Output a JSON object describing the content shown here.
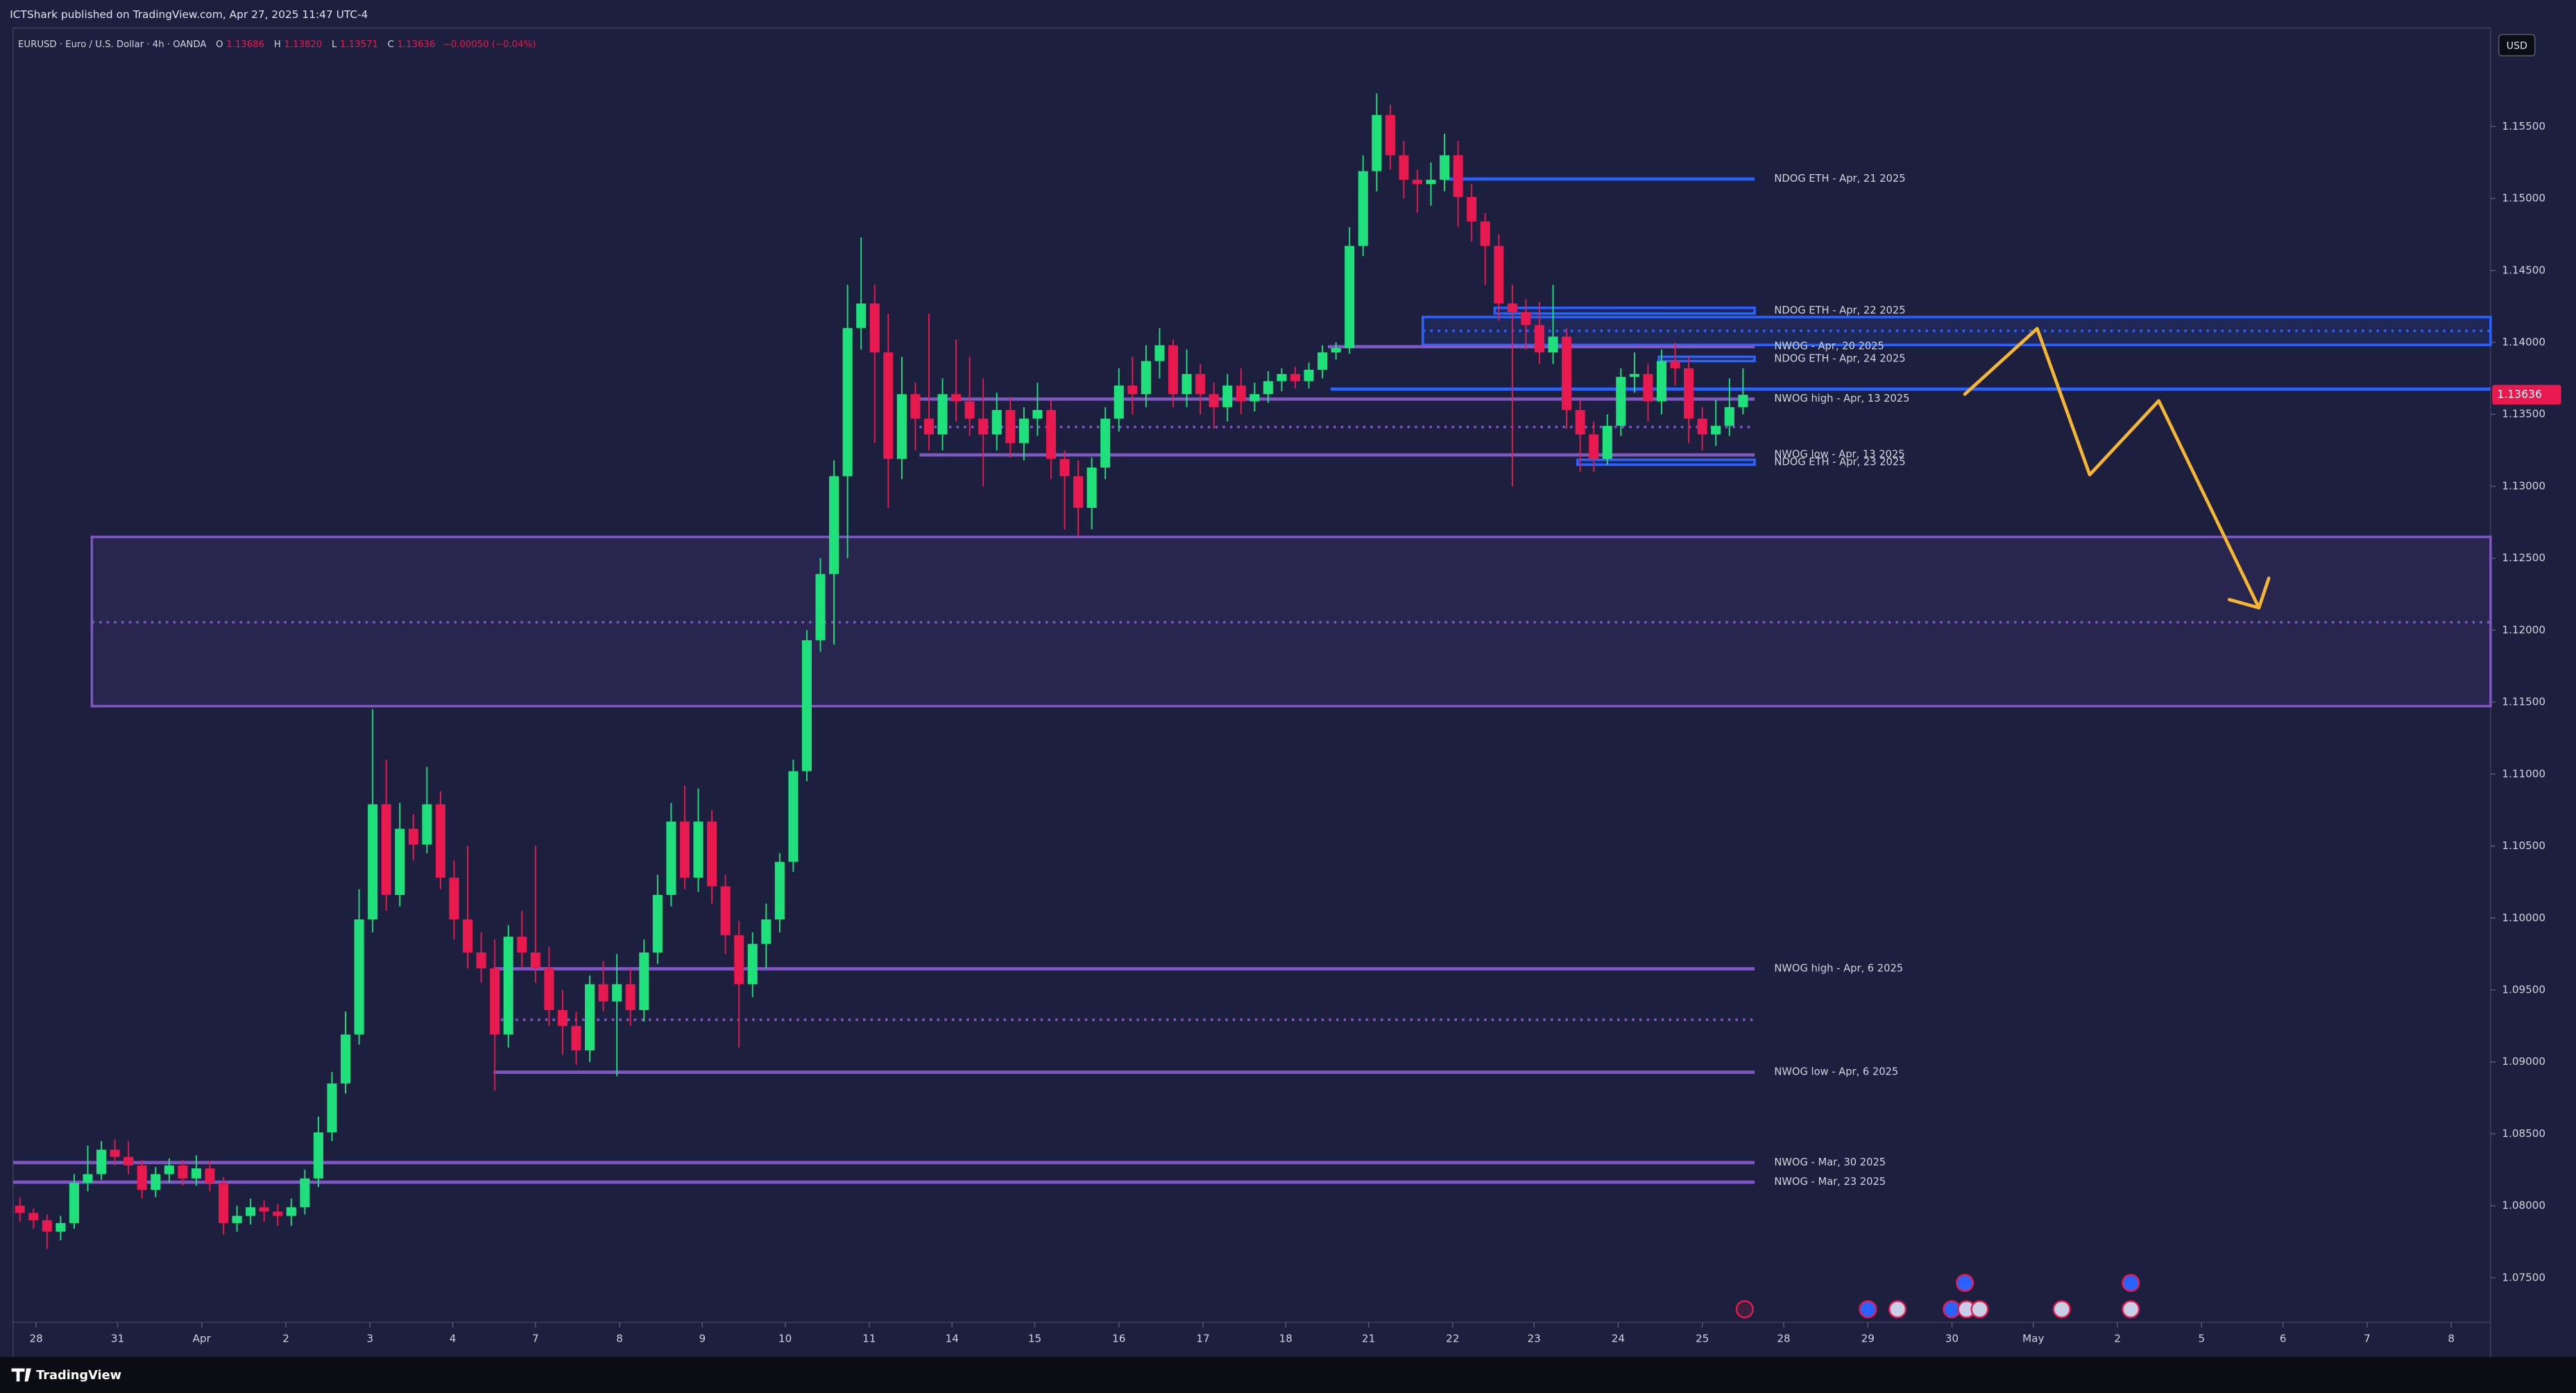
{
  "header": {
    "publisher": "ICTShark published on TradingView.com, Apr 27, 2025 11:47 UTC-4",
    "symbol": "EURUSD · Euro / U.S. Dollar · 4h · OANDA",
    "ohlc": [
      {
        "key": "O",
        "value": "1.13686"
      },
      {
        "key": "H",
        "value": "1.13820"
      },
      {
        "key": "L",
        "value": "1.13571"
      },
      {
        "key": "C",
        "value": "1.13636"
      }
    ],
    "change": "−0.00050 (−0.04%)"
  },
  "chart_data": {
    "type": "candlestick",
    "currency": "USD",
    "up_color": "#1fe07a",
    "down_color": "#e8194f",
    "grid": false,
    "open": [
      1.08,
      1.0795,
      1.079,
      1.0782,
      1.0788,
      1.0816,
      1.0822,
      1.0839,
      1.0834,
      1.0828,
      1.0811,
      1.0822,
      1.0828,
      1.0819,
      1.0826,
      1.0816,
      1.0788,
      1.0793,
      1.0799,
      1.0796,
      1.0793,
      1.0799,
      1.0819,
      1.0851,
      1.0885,
      1.0919,
      1.0999,
      1.1079,
      1.1016,
      1.1062,
      1.1051,
      1.1079,
      1.1028,
      1.0999,
      1.0976,
      1.0965,
      1.0919,
      1.0987,
      1.0976,
      1.0965,
      1.0936,
      1.0925,
      1.0908,
      1.0954,
      1.0942,
      1.0954,
      1.0936,
      1.0976,
      1.1016,
      1.1067,
      1.1028,
      1.1067,
      1.1022,
      1.0988,
      1.0954,
      1.0982,
      1.0999,
      1.1039,
      1.1102,
      1.1193,
      1.1239,
      1.1307,
      1.141,
      1.1427,
      1.1393,
      1.1319,
      1.1364,
      1.1347,
      1.1336,
      1.1364,
      1.1359,
      1.1347,
      1.1336,
      1.1353,
      1.133,
      1.1347,
      1.1353,
      1.1319,
      1.1307,
      1.1285,
      1.1313,
      1.1347,
      1.137,
      1.1364,
      1.1387,
      1.1398,
      1.1364,
      1.1378,
      1.1364,
      1.1355,
      1.137,
      1.1359,
      1.1364,
      1.1373,
      1.1378,
      1.1373,
      1.1381,
      1.1393,
      1.1396,
      1.1467,
      1.1519,
      1.1558,
      1.153,
      1.1513,
      1.151,
      1.1513,
      1.153,
      1.1501,
      1.1484,
      1.1467,
      1.1427,
      1.1421,
      1.1412,
      1.1393,
      1.1404,
      1.1353,
      1.1336,
      1.1319,
      1.1342,
      1.1376,
      1.1378,
      1.1359,
      1.1387,
      1.1382,
      1.1347,
      1.1336,
      1.1342,
      1.1355
    ],
    "high": [
      1.0806,
      1.0798,
      1.0794,
      1.0793,
      1.0822,
      1.0842,
      1.0845,
      1.0846,
      1.0845,
      1.0832,
      1.0827,
      1.0833,
      1.0832,
      1.0835,
      1.0831,
      1.082,
      1.08,
      1.0805,
      1.0804,
      1.0801,
      1.0805,
      1.0825,
      1.0862,
      1.0893,
      1.0935,
      1.102,
      1.1145,
      1.111,
      1.108,
      1.1072,
      1.1105,
      1.1088,
      1.104,
      1.105,
      1.099,
      1.0985,
      1.0995,
      1.1005,
      1.105,
      1.098,
      1.095,
      1.0935,
      1.096,
      1.097,
      1.0975,
      1.0965,
      1.0985,
      1.103,
      1.108,
      1.1092,
      1.109,
      1.1075,
      1.103,
      1.0998,
      1.099,
      1.101,
      1.1045,
      1.111,
      1.12,
      1.125,
      1.1318,
      1.144,
      1.1473,
      1.144,
      1.142,
      1.139,
      1.1372,
      1.142,
      1.1375,
      1.1402,
      1.139,
      1.1375,
      1.1365,
      1.1362,
      1.1355,
      1.1372,
      1.136,
      1.1325,
      1.1318,
      1.132,
      1.1355,
      1.1382,
      1.139,
      1.1398,
      1.141,
      1.1402,
      1.1395,
      1.1385,
      1.1372,
      1.1378,
      1.1382,
      1.1372,
      1.138,
      1.1382,
      1.1383,
      1.1386,
      1.1398,
      1.14,
      1.148,
      1.153,
      1.1573,
      1.1565,
      1.154,
      1.152,
      1.1525,
      1.1545,
      1.154,
      1.151,
      1.149,
      1.1475,
      1.144,
      1.143,
      1.1428,
      1.144,
      1.141,
      1.136,
      1.1345,
      1.135,
      1.1382,
      1.1393,
      1.1385,
      1.1395,
      1.14,
      1.139,
      1.1355,
      1.136,
      1.1375,
      1.1382
    ],
    "low": [
      1.0789,
      1.0784,
      1.077,
      1.0776,
      1.0784,
      1.081,
      1.0818,
      1.0828,
      1.0822,
      1.0805,
      1.0806,
      1.0816,
      1.0814,
      1.0814,
      1.081,
      1.078,
      1.0782,
      1.0787,
      1.0789,
      1.0786,
      1.0786,
      1.0794,
      1.0813,
      1.0845,
      1.0878,
      1.0912,
      1.099,
      1.1005,
      1.1008,
      1.104,
      1.1045,
      1.102,
      1.0985,
      1.0965,
      1.0955,
      1.088,
      1.091,
      1.0965,
      1.0955,
      1.0925,
      1.0905,
      1.0898,
      1.09,
      1.0935,
      1.089,
      1.0925,
      1.0928,
      1.0968,
      1.1008,
      1.102,
      1.1018,
      1.101,
      1.0975,
      1.091,
      1.0945,
      1.0965,
      1.099,
      1.1032,
      1.1095,
      1.1185,
      1.119,
      1.125,
      1.1395,
      1.133,
      1.1285,
      1.1305,
      1.1325,
      1.1325,
      1.1325,
      1.1345,
      1.1335,
      1.13,
      1.1325,
      1.132,
      1.1318,
      1.1335,
      1.1305,
      1.127,
      1.1265,
      1.127,
      1.1305,
      1.1338,
      1.135,
      1.1355,
      1.1375,
      1.1355,
      1.1355,
      1.135,
      1.134,
      1.1345,
      1.135,
      1.1352,
      1.1358,
      1.1366,
      1.1368,
      1.1368,
      1.1375,
      1.1388,
      1.1392,
      1.146,
      1.1505,
      1.152,
      1.15,
      1.149,
      1.1495,
      1.1505,
      1.148,
      1.147,
      1.144,
      1.1415,
      1.13,
      1.1395,
      1.1385,
      1.1385,
      1.134,
      1.131,
      1.131,
      1.1315,
      1.1335,
      1.1365,
      1.1345,
      1.135,
      1.137,
      1.133,
      1.1325,
      1.1328,
      1.1335,
      1.135
    ],
    "close": [
      1.0795,
      1.079,
      1.0782,
      1.0788,
      1.0816,
      1.0822,
      1.0839,
      1.0834,
      1.0828,
      1.0811,
      1.0822,
      1.0828,
      1.0819,
      1.0826,
      1.0816,
      1.0788,
      1.0793,
      1.0799,
      1.0796,
      1.0793,
      1.0799,
      1.0819,
      1.0851,
      1.0885,
      1.0919,
      1.0999,
      1.1079,
      1.1016,
      1.1062,
      1.1051,
      1.1079,
      1.1028,
      1.0999,
      1.0976,
      1.0965,
      1.0919,
      1.0987,
      1.0976,
      1.0965,
      1.0936,
      1.0925,
      1.0908,
      1.0954,
      1.0942,
      1.0954,
      1.0936,
      1.0976,
      1.1016,
      1.1067,
      1.1028,
      1.1067,
      1.1022,
      1.0988,
      1.0954,
      1.0982,
      1.0999,
      1.1039,
      1.1102,
      1.1193,
      1.1239,
      1.1307,
      1.141,
      1.1427,
      1.1393,
      1.1319,
      1.1364,
      1.1347,
      1.1336,
      1.1364,
      1.1359,
      1.1347,
      1.1336,
      1.1353,
      1.133,
      1.1347,
      1.1353,
      1.1319,
      1.1307,
      1.1285,
      1.1313,
      1.1347,
      1.137,
      1.1364,
      1.1387,
      1.1398,
      1.1364,
      1.1378,
      1.1364,
      1.1355,
      1.137,
      1.1359,
      1.1364,
      1.1373,
      1.1378,
      1.1373,
      1.1381,
      1.1393,
      1.1396,
      1.1467,
      1.1519,
      1.1558,
      1.153,
      1.1513,
      1.151,
      1.1513,
      1.153,
      1.1501,
      1.1484,
      1.1467,
      1.1427,
      1.1421,
      1.1412,
      1.1393,
      1.1404,
      1.1353,
      1.1336,
      1.1319,
      1.1342,
      1.1376,
      1.1378,
      1.1359,
      1.1387,
      1.1382,
      1.1347,
      1.1336,
      1.1342,
      1.1355,
      1.13636
    ],
    "ylim": [
      1.0719,
      1.16185
    ],
    "yticks": [
      {
        "value": 1.075,
        "label": "1.07500"
      },
      {
        "value": 1.08,
        "label": "1.08000"
      },
      {
        "value": 1.085,
        "label": "1.08500"
      },
      {
        "value": 1.09,
        "label": "1.09000"
      },
      {
        "value": 1.095,
        "label": "1.09500"
      },
      {
        "value": 1.1,
        "label": "1.10000"
      },
      {
        "value": 1.105,
        "label": "1.10500"
      },
      {
        "value": 1.11,
        "label": "1.11000"
      },
      {
        "value": 1.115,
        "label": "1.11500"
      },
      {
        "value": 1.12,
        "label": "1.12000"
      },
      {
        "value": 1.125,
        "label": "1.12500"
      },
      {
        "value": 1.13,
        "label": "1.13000"
      },
      {
        "value": 1.135,
        "label": "1.13500"
      },
      {
        "value": 1.14,
        "label": "1.14000"
      },
      {
        "value": 1.145,
        "label": "1.14500"
      },
      {
        "value": 1.15,
        "label": "1.15000"
      },
      {
        "value": 1.155,
        "label": "1.15500"
      }
    ],
    "xlim": [
      0,
      182.6
    ],
    "xticks": [
      {
        "value": 1.7,
        "label": "28"
      },
      {
        "value": 7.7,
        "label": "31"
      },
      {
        "value": 13.9,
        "label": "Apr"
      },
      {
        "value": 20.1,
        "label": "2"
      },
      {
        "value": 26.3,
        "label": "3"
      },
      {
        "value": 32.4,
        "label": "4"
      },
      {
        "value": 38.5,
        "label": "7"
      },
      {
        "value": 44.7,
        "label": "8"
      },
      {
        "value": 50.8,
        "label": "9"
      },
      {
        "value": 56.9,
        "label": "10"
      },
      {
        "value": 63.1,
        "label": "11"
      },
      {
        "value": 69.2,
        "label": "14"
      },
      {
        "value": 75.3,
        "label": "15"
      },
      {
        "value": 81.5,
        "label": "16"
      },
      {
        "value": 87.7,
        "label": "17"
      },
      {
        "value": 93.8,
        "label": "18"
      },
      {
        "value": 99.9,
        "label": "21"
      },
      {
        "value": 106.1,
        "label": "22"
      },
      {
        "value": 112.1,
        "label": "23"
      },
      {
        "value": 118.3,
        "label": "24"
      },
      {
        "value": 124.5,
        "label": "25"
      },
      {
        "value": 130.5,
        "label": "28"
      },
      {
        "value": 136.7,
        "label": "29"
      },
      {
        "value": 142.9,
        "label": "30"
      },
      {
        "value": 148.9,
        "label": "May"
      },
      {
        "value": 155.1,
        "label": "2"
      },
      {
        "value": 161.3,
        "label": "5"
      },
      {
        "value": 167.3,
        "label": "6"
      },
      {
        "value": 173.5,
        "label": "7"
      },
      {
        "value": 179.7,
        "label": "8"
      }
    ],
    "last_price": {
      "value": 1.13636,
      "label": "1.13636"
    },
    "zones": [
      {
        "label": "NDOG ETH - Apr, 22 2025",
        "high": 1.1424,
        "low": 1.142,
        "start": 109.2,
        "color": "#2962ff"
      },
      {
        "high": 1.14176,
        "low": 1.13982,
        "mid": 1.1408,
        "start": 103.9,
        "extend": true,
        "color": "#2962ff"
      },
      {
        "label": "NDOG ETH - Apr, 24 2025",
        "high": 1.139,
        "low": 1.1387,
        "start": 121.3,
        "color": "#2962ff"
      },
      {
        "label": "NDOG ETH - Apr, 23 2025",
        "high": 1.13184,
        "low": 1.1315,
        "start": 115.3,
        "color": "#2962ff"
      },
      {
        "high": 1.12648,
        "low": 1.11472,
        "mid": 1.12055,
        "start": 5.8,
        "extend": true,
        "color": "#7e57c2"
      }
    ],
    "levels": [
      {
        "label": "NDOG ETH - Apr, 21 2025",
        "price": 1.15135,
        "start": 105.6,
        "color": "#2962ff"
      },
      {
        "label": "NWOG - Apr, 20 2025",
        "price": 1.1397,
        "start": 96.9,
        "color": "#7e57c2"
      },
      {
        "price": 1.13675,
        "start": 97.1,
        "extend": true,
        "color": "#2962ff"
      },
      {
        "label": "NWOG high - Apr, 13 2025",
        "price": 1.13606,
        "start": 66.8,
        "color": "#7e57c2"
      },
      {
        "price": 1.13412,
        "start": 66.8,
        "dotted": true,
        "color": "#7e57c2"
      },
      {
        "label": "NWOG low - Apr, 13 2025",
        "price": 1.13218,
        "start": 66.8,
        "color": "#7e57c2"
      },
      {
        "label": "NWOG high - Apr, 6 2025",
        "price": 1.09647,
        "start": 35.4,
        "color": "#7e57c2"
      },
      {
        "price": 1.09293,
        "start": 35.4,
        "dotted": true,
        "color": "#7e57c2"
      },
      {
        "label": "NWOG low - Apr, 6 2025",
        "price": 1.08928,
        "start": 35.4,
        "color": "#7e57c2"
      },
      {
        "label": "NWOG - Mar, 30 2025",
        "price": 1.083,
        "start": 0,
        "color": "#7e57c2"
      },
      {
        "label": "NWOG - Mar, 23 2025",
        "price": 1.08164,
        "start": 0,
        "color": "#7e57c2"
      }
    ]
  },
  "footer": {
    "brand": "TradingView"
  }
}
